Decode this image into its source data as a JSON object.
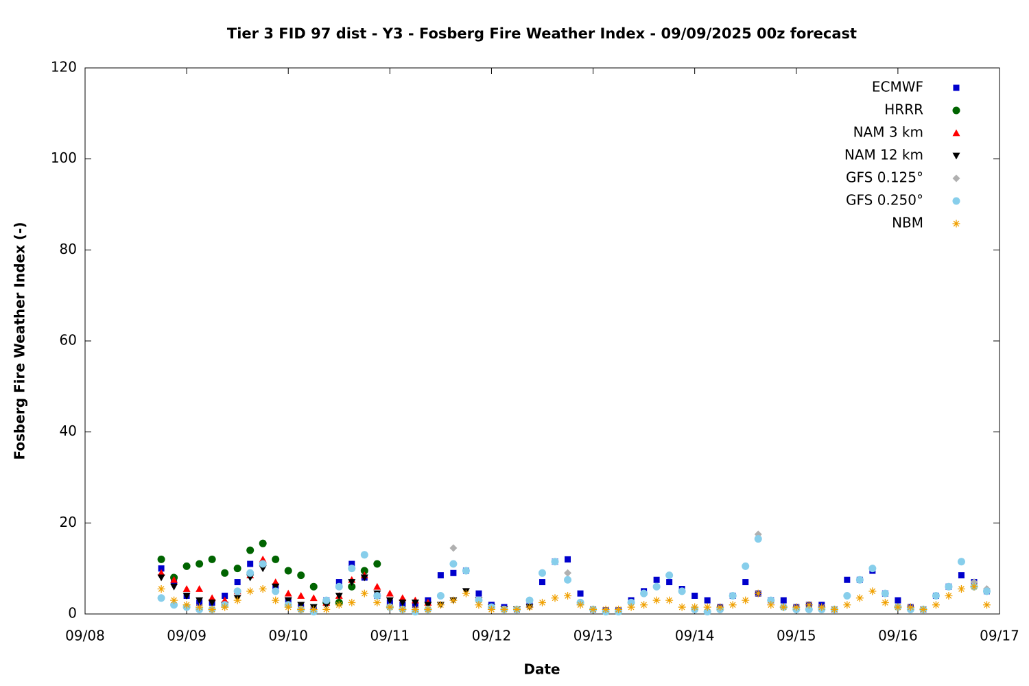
{
  "chart_data": {
    "type": "scatter",
    "title": "Tier 3 FID 97 dist - Y3 - Fosberg Fire Weather Index - 09/09/2025 00z forecast",
    "x_label": "Date",
    "y_label": "Fosberg Fire Weather Index (-)",
    "xlim": [
      0,
      9
    ],
    "ylim": [
      0,
      120
    ],
    "xticks": [
      {
        "value": 0,
        "label": "09/08"
      },
      {
        "value": 1,
        "label": "09/09"
      },
      {
        "value": 2,
        "label": "09/10"
      },
      {
        "value": 3,
        "label": "09/11"
      },
      {
        "value": 4,
        "label": "09/12"
      },
      {
        "value": 5,
        "label": "09/13"
      },
      {
        "value": 6,
        "label": "09/14"
      },
      {
        "value": 7,
        "label": "09/15"
      },
      {
        "value": 8,
        "label": "09/16"
      },
      {
        "value": 9,
        "label": "09/17"
      }
    ],
    "yticks": [
      0,
      20,
      40,
      60,
      80,
      100,
      120
    ],
    "grid": false,
    "legend": "top-right",
    "series": [
      {
        "name": "ECMWF",
        "color": "#0000cc",
        "marker": "square",
        "x": [
          0.75,
          0.875,
          1,
          1.125,
          1.25,
          1.375,
          1.5,
          1.625,
          1.75,
          1.875,
          2,
          2.125,
          2.25,
          2.375,
          2.5,
          2.625,
          2.75,
          2.875,
          3,
          3.125,
          3.25,
          3.375,
          3.5,
          3.625,
          3.75,
          3.875,
          4,
          4.125,
          4.25,
          4.375,
          4.5,
          4.625,
          4.75,
          4.875,
          5,
          5.125,
          5.25,
          5.375,
          5.5,
          5.625,
          5.75,
          5.875,
          6,
          6.125,
          6.25,
          6.375,
          6.5,
          6.625,
          6.75,
          6.875,
          7,
          7.125,
          7.25,
          7.375,
          7.5,
          7.625,
          7.75,
          7.875,
          8,
          8.125,
          8.25,
          8.375,
          8.5,
          8.625,
          8.75,
          8.875
        ],
        "values": [
          10,
          7,
          4,
          2.5,
          2.5,
          4,
          7,
          11,
          11,
          6,
          3,
          1.5,
          1,
          3,
          7,
          11,
          8,
          4,
          2.5,
          2,
          2,
          3,
          8.5,
          9,
          9.5,
          4.5,
          2,
          1.5,
          1,
          2,
          7,
          11.5,
          12,
          4.5,
          1,
          0.8,
          0.8,
          3,
          5,
          7.5,
          7,
          5.5,
          4,
          3,
          1.5,
          4,
          7,
          4.5,
          3,
          3,
          1.5,
          2,
          2,
          1,
          7.5,
          7.5,
          9.5,
          4.5,
          3,
          1.5,
          1,
          4,
          6,
          8.5,
          7,
          5
        ]
      },
      {
        "name": "HRRR",
        "color": "#006400",
        "marker": "circle",
        "x": [
          0.75,
          0.875,
          1,
          1.125,
          1.25,
          1.375,
          1.5,
          1.625,
          1.75,
          1.875,
          2,
          2.125,
          2.25,
          2.375,
          2.5,
          2.625,
          2.75,
          2.875
        ],
        "values": [
          12,
          8,
          10.5,
          11,
          12,
          9,
          10,
          14,
          15.5,
          12,
          9.5,
          8.5,
          6,
          2.5,
          2.5,
          6,
          9.5,
          11
        ]
      },
      {
        "name": "NAM 3 km",
        "color": "#ff0000",
        "marker": "triangle-up",
        "x": [
          0.75,
          0.875,
          1,
          1.125,
          1.25,
          1.375,
          1.5,
          1.625,
          1.75,
          1.875,
          2,
          2.125,
          2.25,
          2.375,
          2.5,
          2.625,
          2.75,
          2.875,
          3,
          3.125,
          3.25,
          3.375
        ],
        "values": [
          9,
          7.5,
          5.5,
          5.5,
          3.5,
          3,
          5,
          8.5,
          12,
          7,
          4.5,
          4,
          3.5,
          2.5,
          4,
          7.5,
          8.5,
          6,
          4.5,
          3.5,
          3,
          2.5
        ]
      },
      {
        "name": "NAM 12 km",
        "color": "#000000",
        "marker": "triangle-down",
        "x": [
          0.75,
          0.875,
          1,
          1.125,
          1.25,
          1.375,
          1.5,
          1.625,
          1.75,
          1.875,
          2,
          2.125,
          2.25,
          2.375,
          2.5,
          2.625,
          2.75,
          2.875,
          3,
          3.125,
          3.25,
          3.375,
          3.5,
          3.625,
          3.75,
          3.875,
          4,
          4.125,
          4.25,
          4.375
        ],
        "values": [
          8,
          6,
          4,
          3,
          2.5,
          2,
          3.5,
          8,
          10,
          6,
          3,
          2,
          1.5,
          2,
          4,
          7,
          8,
          4.5,
          3,
          2.5,
          2.5,
          2,
          2,
          3,
          5,
          3,
          1.5,
          1,
          1,
          1.5
        ]
      },
      {
        "name": "GFS 0.125°",
        "color": "#b0b0b0",
        "marker": "diamond",
        "x": [
          0.75,
          0.875,
          1,
          1.125,
          1.25,
          1.375,
          1.5,
          1.625,
          1.75,
          1.875,
          2,
          2.125,
          2.25,
          2.375,
          2.5,
          2.625,
          2.75,
          2.875,
          3,
          3.125,
          3.25,
          3.375,
          3.5,
          3.625,
          3.75,
          3.875,
          4,
          4.125,
          4.25,
          4.375,
          4.5,
          4.625,
          4.75,
          4.875,
          5,
          5.125,
          5.25,
          5.375,
          5.5,
          5.625,
          5.75,
          5.875,
          6,
          6.125,
          6.25,
          6.375,
          6.5,
          6.625,
          6.75,
          6.875,
          7,
          7.125,
          7.25,
          7.375,
          7.5,
          7.625,
          7.75,
          7.875,
          8,
          8.125,
          8.25,
          8.375,
          8.5,
          8.625,
          8.75,
          8.875
        ],
        "values": [
          3.5,
          2,
          1.5,
          1,
          1,
          2,
          5,
          9,
          11,
          5,
          2,
          1,
          0.5,
          3,
          6,
          10,
          13,
          4,
          1.5,
          1,
          0.5,
          1,
          4,
          14.5,
          9.5,
          3,
          1.5,
          1,
          1,
          3,
          9,
          11.5,
          9,
          2.5,
          1,
          0.5,
          0.5,
          2.5,
          4.5,
          6,
          8.5,
          5,
          1,
          0.5,
          1,
          4,
          10.5,
          17.5,
          3,
          1.5,
          1,
          1,
          1,
          1,
          4,
          7.5,
          10,
          4.5,
          1.5,
          1,
          1,
          4,
          6,
          11.5,
          7,
          5.5
        ]
      },
      {
        "name": "GFS 0.250°",
        "color": "#87ceeb",
        "marker": "circle",
        "x": [
          0.75,
          0.875,
          1,
          1.125,
          1.25,
          1.375,
          1.5,
          1.625,
          1.75,
          1.875,
          2,
          2.125,
          2.25,
          2.375,
          2.5,
          2.625,
          2.75,
          2.875,
          3,
          3.125,
          3.25,
          3.375,
          3.5,
          3.625,
          3.75,
          3.875,
          4,
          4.125,
          4.25,
          4.375,
          4.5,
          4.625,
          4.75,
          4.875,
          5,
          5.125,
          5.25,
          5.375,
          5.5,
          5.625,
          5.75,
          5.875,
          6,
          6.125,
          6.25,
          6.375,
          6.5,
          6.625,
          6.75,
          6.875,
          7,
          7.125,
          7.25,
          7.375,
          7.5,
          7.625,
          7.75,
          7.875,
          8,
          8.125,
          8.25,
          8.375,
          8.5,
          8.625,
          8.75,
          8.875
        ],
        "values": [
          3.5,
          2,
          1.5,
          1,
          1,
          2,
          5,
          9,
          11,
          5,
          2,
          1,
          0.5,
          3,
          6,
          10,
          13,
          4,
          1.5,
          1,
          0.5,
          1,
          4,
          11,
          9.5,
          3,
          1.5,
          1,
          1,
          3,
          9,
          11.5,
          7.5,
          2.5,
          1,
          0.5,
          0.5,
          2.5,
          4.5,
          6,
          8.5,
          5,
          1,
          0.5,
          1,
          4,
          10.5,
          16.5,
          3,
          1.5,
          1,
          1,
          1,
          1,
          4,
          7.5,
          10,
          4.5,
          1.5,
          1,
          1,
          4,
          6,
          11.5,
          6,
          5
        ]
      },
      {
        "name": "NBM",
        "color": "#f0a000",
        "marker": "star",
        "x": [
          0.75,
          0.875,
          1,
          1.125,
          1.25,
          1.375,
          1.5,
          1.625,
          1.75,
          1.875,
          2,
          2.125,
          2.25,
          2.375,
          2.5,
          2.625,
          2.75,
          2.875,
          3,
          3.125,
          3.25,
          3.375,
          3.5,
          3.625,
          3.75,
          3.875,
          4,
          4.125,
          4.25,
          4.375,
          4.5,
          4.625,
          4.75,
          4.875,
          5,
          5.125,
          5.25,
          5.375,
          5.5,
          5.625,
          5.75,
          5.875,
          6,
          6.125,
          6.25,
          6.375,
          6.5,
          6.625,
          6.75,
          6.875,
          7,
          7.125,
          7.25,
          7.375,
          7.5,
          7.625,
          7.75,
          7.875,
          8,
          8.125,
          8.25,
          8.375,
          8.5,
          8.625,
          8.75,
          8.875
        ],
        "values": [
          5.5,
          3,
          2,
          1.5,
          1,
          1.5,
          3,
          5,
          5.5,
          3,
          1.5,
          1,
          1,
          1,
          2,
          2.5,
          4.5,
          2.5,
          1.5,
          1,
          1,
          1,
          2,
          3,
          4.5,
          2,
          1,
          1,
          1,
          1.5,
          2.5,
          3.5,
          4,
          2,
          1,
          1,
          1,
          1.5,
          2,
          3,
          3,
          1.5,
          1.5,
          1.5,
          1.5,
          2,
          3,
          4.5,
          2,
          1.5,
          1.5,
          2,
          1.5,
          1,
          2,
          3.5,
          5,
          2.5,
          1.5,
          1.5,
          1,
          2,
          4,
          5.5,
          6,
          2
        ]
      }
    ]
  }
}
